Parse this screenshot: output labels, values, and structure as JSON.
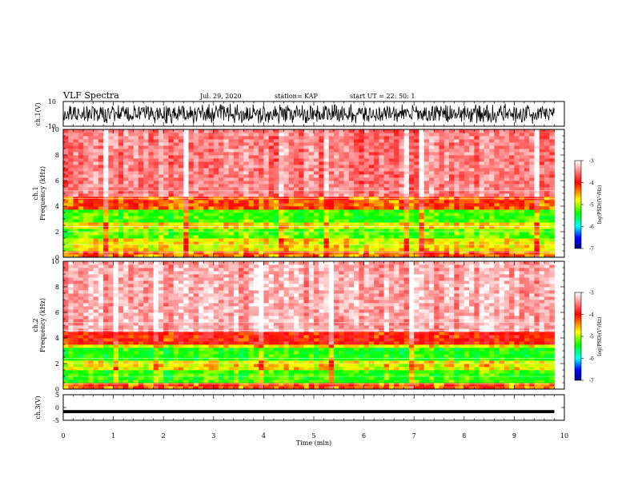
{
  "header": {
    "title": "VLF Spectra",
    "date": "Jul. 29, 2020",
    "station": "station= KAP",
    "start": "start UT =  22: 50: 1"
  },
  "chart_data": [
    {
      "type": "line",
      "panel": "ch1-waveform",
      "ylabel": "ch.1(V)",
      "ylim": [
        -10,
        10
      ],
      "ytick_labels": [
        "10",
        "-10"
      ],
      "note": "dense noisy waveform oscillating between about -9 and +9 V over 0-9.8 min"
    },
    {
      "type": "heatmap",
      "panel": "ch1-spectrogram",
      "ylabel": "ch.1\nFrequency (kHz)",
      "ylim": [
        0,
        10
      ],
      "ytick_labels": [
        "0",
        "2",
        "4",
        "6",
        "8",
        "10"
      ],
      "xlim": [
        0,
        9.8
      ],
      "bands": [
        {
          "from_khz": 0.0,
          "to_khz": 0.6,
          "level": -4.3
        },
        {
          "from_khz": 0.6,
          "to_khz": 1.4,
          "level": -4.6
        },
        {
          "from_khz": 1.4,
          "to_khz": 2.2,
          "level": -5.0
        },
        {
          "from_khz": 2.2,
          "to_khz": 2.8,
          "level": -4.6
        },
        {
          "from_khz": 2.8,
          "to_khz": 3.8,
          "level": -5.1
        },
        {
          "from_khz": 3.8,
          "to_khz": 4.8,
          "level": -4.2
        },
        {
          "from_khz": 4.8,
          "to_khz": 10.0,
          "level": -3.5
        }
      ],
      "colorbar": {
        "label": "log(PSD)(V²/Hz)",
        "range": [
          -7,
          -3
        ],
        "tick_labels": [
          "-3",
          "-4",
          "-5",
          "-6",
          "-7"
        ],
        "colors": [
          "#ffffff",
          "#ff0000",
          "#ffff00",
          "#00ff00",
          "#00ffff",
          "#0000ff",
          "#000080"
        ]
      }
    },
    {
      "type": "heatmap",
      "panel": "ch2-spectrogram",
      "ylabel": "ch.2\nFrequency (kHz)",
      "ylim": [
        0,
        10
      ],
      "ytick_labels": [
        "0",
        "2",
        "4",
        "6",
        "8",
        "10"
      ],
      "xlim": [
        0,
        9.8
      ],
      "bands": [
        {
          "from_khz": 0.0,
          "to_khz": 0.6,
          "level": -4.2
        },
        {
          "from_khz": 0.6,
          "to_khz": 1.6,
          "level": -5.1
        },
        {
          "from_khz": 1.6,
          "to_khz": 2.2,
          "level": -4.6
        },
        {
          "from_khz": 2.2,
          "to_khz": 3.2,
          "level": -5.2
        },
        {
          "from_khz": 3.2,
          "to_khz": 3.6,
          "level": -4.6
        },
        {
          "from_khz": 3.6,
          "to_khz": 4.4,
          "level": -4.0
        },
        {
          "from_khz": 4.4,
          "to_khz": 10.0,
          "level": -3.3
        }
      ],
      "colorbar": {
        "label": "log(PSD)(V²/Hz)",
        "range": [
          -7,
          -3
        ],
        "tick_labels": [
          "-3",
          "-4",
          "-5",
          "-6",
          "-7"
        ],
        "colors": [
          "#ffffff",
          "#ff0000",
          "#ffff00",
          "#00ff00",
          "#00ffff",
          "#0000ff",
          "#000080"
        ]
      }
    },
    {
      "type": "line",
      "panel": "ch3-waveform",
      "ylabel": "ch.3(V)",
      "ylim": [
        -5,
        5
      ],
      "ytick_labels": [
        "5",
        "0",
        "-5"
      ],
      "note": "narrow thick trace around -1.5 V across 0-9.8 min"
    }
  ],
  "x_axis": {
    "label": "Time (min)",
    "range": [
      0,
      10
    ],
    "tick_labels": [
      "0",
      "1",
      "2",
      "3",
      "4",
      "5",
      "6",
      "7",
      "8",
      "9",
      "10"
    ]
  }
}
